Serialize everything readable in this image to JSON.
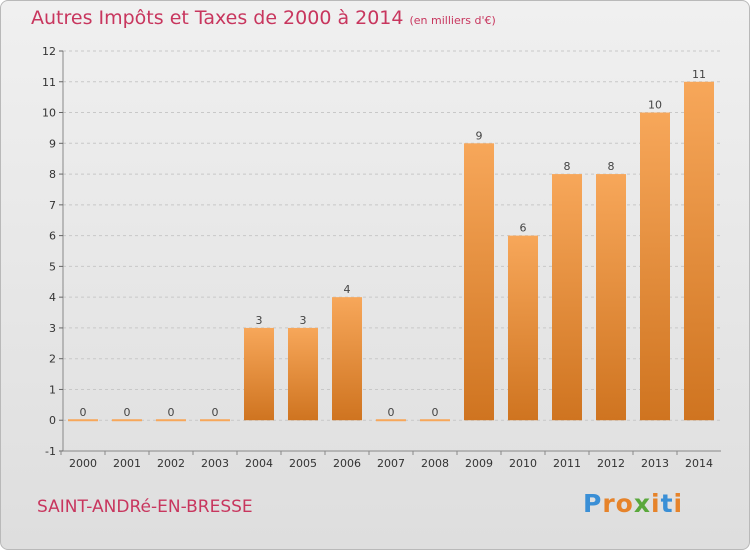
{
  "header": {
    "title": "Autres Impôts et Taxes de 2000 à 2014",
    "unit": "(en milliers d'€)"
  },
  "footer": {
    "commune": "SAINT-ANDRé-EN-BRESSE",
    "logo_letters": [
      "P",
      "r",
      "o",
      "x",
      "i",
      "t",
      "i"
    ]
  },
  "colors": {
    "title": "#c8365e",
    "bar_light": "#f7a75a",
    "bar_dark": "#cf7420",
    "grid": "#c8c8c8",
    "logo": [
      "#3a8fd6",
      "#e6832a",
      "#e6832a",
      "#5aa83c",
      "#e6832a",
      "#3a8fd6",
      "#e6832a"
    ]
  },
  "chart_data": {
    "type": "bar",
    "categories": [
      "2000",
      "2001",
      "2002",
      "2003",
      "2004",
      "2005",
      "2006",
      "2007",
      "2008",
      "2009",
      "2010",
      "2011",
      "2012",
      "2013",
      "2014"
    ],
    "values": [
      0,
      0,
      0,
      0,
      3,
      3,
      4,
      0,
      0,
      9,
      6,
      8,
      8,
      10,
      11
    ],
    "title": "Autres Impôts et Taxes de 2000 à 2014",
    "subtitle": "(en milliers d'€)",
    "xlabel": "",
    "ylabel": "",
    "yticks": [
      "-1",
      "0",
      "1",
      "2",
      "3",
      "4",
      "5",
      "6",
      "7",
      "8",
      "9",
      "10",
      "11",
      "12"
    ],
    "ylim": [
      -1,
      12
    ],
    "grid": true
  }
}
